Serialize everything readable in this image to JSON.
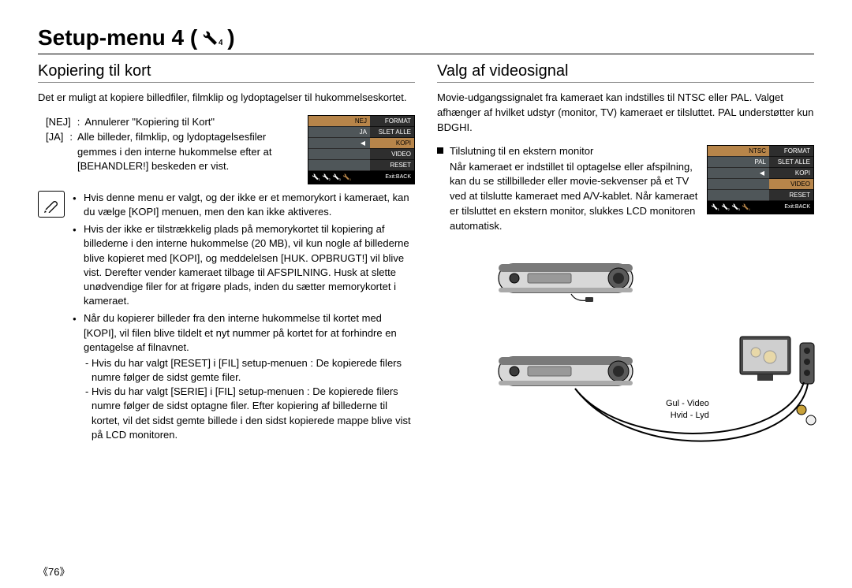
{
  "page": {
    "title_pre": "Setup-menu 4 (",
    "title_post": ")",
    "page_number": "《76》"
  },
  "left": {
    "heading": "Kopiering til kort",
    "intro": "Det er muligt at kopiere billedfiler, filmklip og lydoptagelser til hukommelseskortet.",
    "defs": [
      {
        "key": "[NEJ]",
        "val": "Annulerer \"Kopiering til Kort\""
      },
      {
        "key": "[JA]",
        "val": "Alle billeder, filmklip, og lydoptagelsesfiler gemmes i den interne hukommelse efter at [BEHANDLER!] beskeden er vist."
      }
    ],
    "menu": {
      "left_items": [
        "NEJ",
        "JA",
        "",
        "",
        ""
      ],
      "left_active_index": 0,
      "left_arrow_index": 2,
      "right_items": [
        "FORMAT",
        "SLET ALLE",
        "KOPI",
        "VIDEO",
        "RESET"
      ],
      "right_active_index": 2,
      "footer_right": "Exit:BACK"
    },
    "notes": [
      "Hvis denne menu er valgt, og der ikke er et memorykort i kameraet, kan du vælge [KOPI] menuen, men den kan ikke aktiveres.",
      "Hvis der ikke er tilstrækkelig plads på memorykortet til kopiering af billederne i den interne hukommelse (20 MB), vil kun nogle af billederne blive kopieret med [KOPI], og meddelelsen [HUK. OPBRUGT!] vil blive vist. Derefter vender kameraet tilbage til AFSPILNING. Husk at slette unødvendige filer for at frigøre plads, inden du sætter memorykortet i kameraet.",
      "Når du kopierer billeder fra den interne hukommelse til kortet med [KOPI], vil filen blive tildelt et nyt nummer på kortet for at forhindre en gentagelse af filnavnet."
    ],
    "note3_sub": [
      "- Hvis du har valgt [RESET] i [FIL] setup-menuen : De kopierede filers numre følger de sidst gemte filer.",
      "- Hvis du har valgt [SERIE] i [FIL] setup-menuen : De kopierede filers numre følger de sidst optagne filer. Efter kopiering af billederne til kortet, vil det sidst gemte billede i den sidst kopierede mappe blive vist på LCD monitoren."
    ]
  },
  "right": {
    "heading": "Valg af videosignal",
    "intro": "Movie-udgangssignalet fra kameraet kan indstilles til NTSC eller PAL. Valget afhænger af hvilket udstyr (monitor, TV) kameraet er tilsluttet. PAL understøtter kun BDGHI.",
    "sub_heading": "Tilslutning til en ekstern monitor",
    "sub_text": "Når kameraet er indstillet til optagelse eller afspilning, kan du se stillbilleder eller movie-sekvenser på et TV ved at tilslutte kameraet med A/V-kablet. Når kameraet er tilsluttet en ekstern monitor, slukkes LCD monitoren automatisk.",
    "menu": {
      "left_items": [
        "NTSC",
        "PAL",
        "",
        "",
        ""
      ],
      "left_active_index": 0,
      "left_arrow_index": 2,
      "right_items": [
        "FORMAT",
        "SLET ALLE",
        "KOPI",
        "VIDEO",
        "RESET"
      ],
      "right_active_index": 3,
      "footer_right": "Exit:BACK"
    },
    "cable_labels": [
      "Gul - Video",
      "Hvid - Lyd"
    ]
  },
  "colors": {
    "menu_highlight": "#b7854a",
    "menu_panel": "#4f5659",
    "menu_panel_dark": "#2e2e2e"
  }
}
